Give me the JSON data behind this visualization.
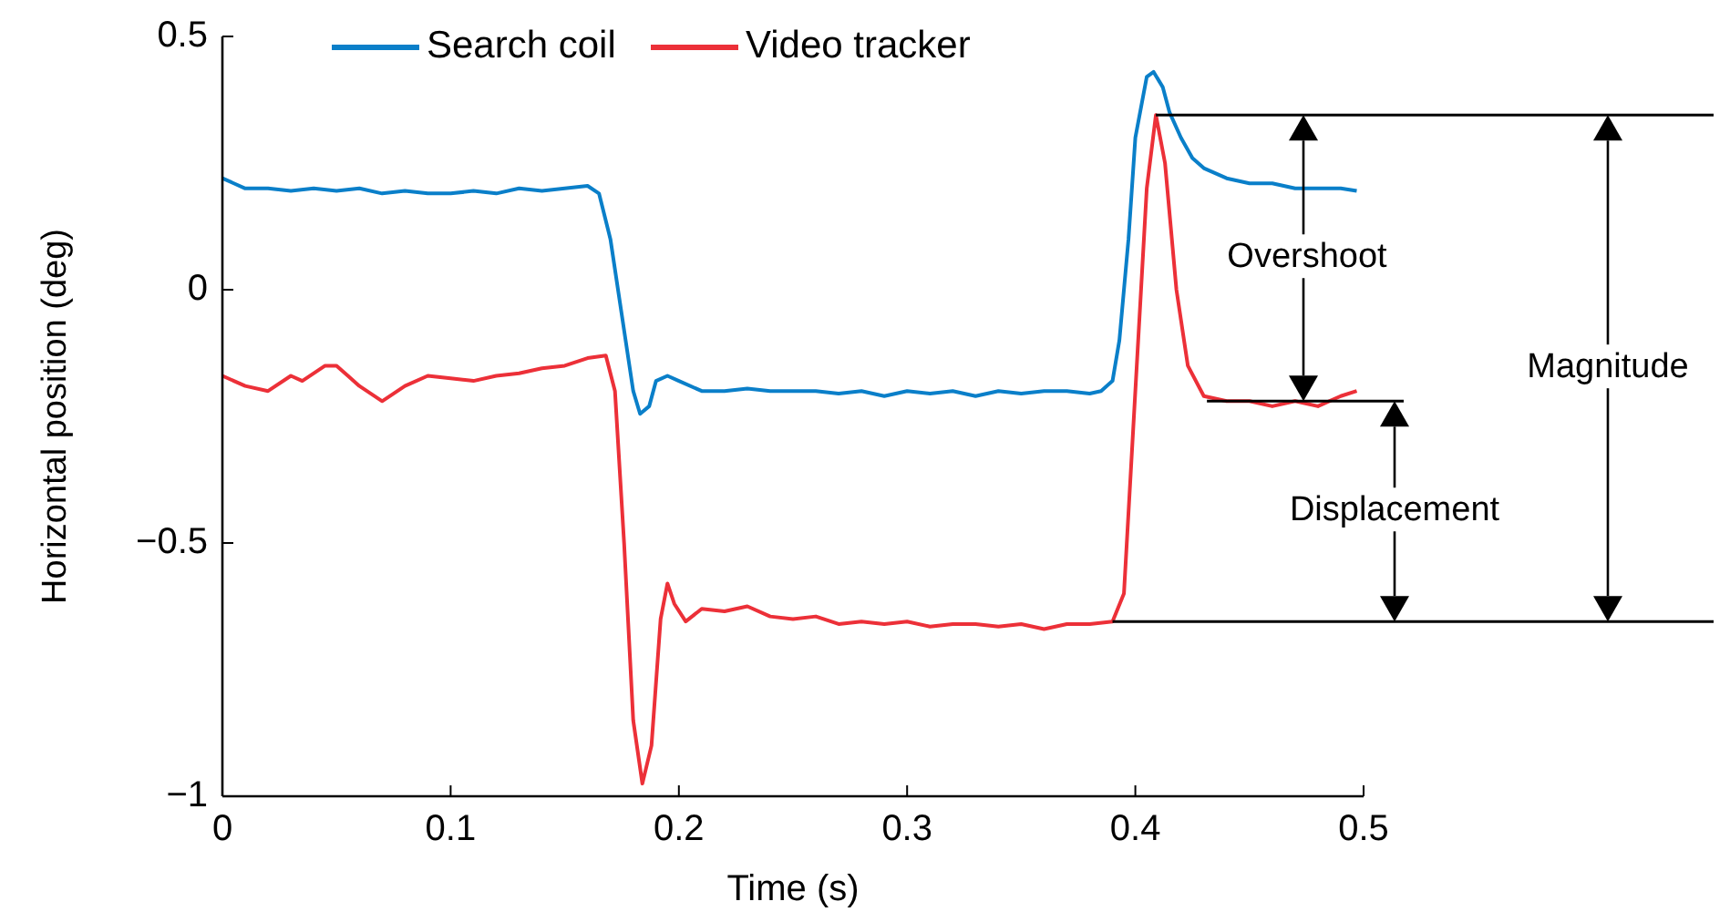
{
  "chart_data": {
    "type": "line",
    "xlabel": "Time (s)",
    "ylabel": "Horizontal position (deg)",
    "xlim": [
      0,
      0.5
    ],
    "xticks": [
      0,
      0.1,
      0.2,
      0.3,
      0.4,
      0.5
    ],
    "ylim": [
      -1,
      0.5
    ],
    "yticks": [
      {
        "value": -1,
        "label": "−1"
      },
      {
        "value": -0.5,
        "label": "−0.5"
      },
      0,
      0.5
    ],
    "legend": "top",
    "grid": false,
    "ref_lines": [
      {
        "axis": "y",
        "value": 0.345,
        "color": "#000000"
      },
      {
        "axis": "y",
        "value": -0.22,
        "color": "#000000"
      },
      {
        "axis": "y",
        "value": -0.655,
        "color": "#000000"
      }
    ],
    "annotations": [
      "Overshoot",
      "Displacement",
      "Magnitude"
    ],
    "series": [
      {
        "name": "Search coil",
        "color": "#0a7fc9",
        "x": [
          0,
          0.005,
          0.01,
          0.02,
          0.03,
          0.04,
          0.05,
          0.06,
          0.07,
          0.08,
          0.09,
          0.1,
          0.11,
          0.12,
          0.13,
          0.14,
          0.15,
          0.16,
          0.165,
          0.17,
          0.175,
          0.18,
          0.183,
          0.187,
          0.19,
          0.195,
          0.2,
          0.21,
          0.22,
          0.23,
          0.24,
          0.25,
          0.26,
          0.27,
          0.28,
          0.29,
          0.3,
          0.31,
          0.32,
          0.33,
          0.34,
          0.35,
          0.36,
          0.37,
          0.38,
          0.385,
          0.39,
          0.393,
          0.397,
          0.4,
          0.405,
          0.408,
          0.412,
          0.415,
          0.42,
          0.425,
          0.43,
          0.44,
          0.45,
          0.46,
          0.47,
          0.48,
          0.49,
          0.497
        ],
        "values": [
          0.22,
          0.21,
          0.2,
          0.2,
          0.195,
          0.2,
          0.195,
          0.2,
          0.19,
          0.195,
          0.19,
          0.19,
          0.195,
          0.19,
          0.2,
          0.195,
          0.2,
          0.205,
          0.19,
          0.1,
          -0.05,
          -0.2,
          -0.245,
          -0.23,
          -0.18,
          -0.17,
          -0.18,
          -0.2,
          -0.2,
          -0.195,
          -0.2,
          -0.2,
          -0.2,
          -0.205,
          -0.2,
          -0.21,
          -0.2,
          -0.205,
          -0.2,
          -0.21,
          -0.2,
          -0.205,
          -0.2,
          -0.2,
          -0.205,
          -0.2,
          -0.18,
          -0.1,
          0.1,
          0.3,
          0.42,
          0.43,
          0.4,
          0.35,
          0.3,
          0.26,
          0.24,
          0.22,
          0.21,
          0.21,
          0.2,
          0.2,
          0.2,
          0.195
        ]
      },
      {
        "name": "Video tracker",
        "color": "#ec3038",
        "x": [
          0,
          0.01,
          0.02,
          0.03,
          0.035,
          0.045,
          0.05,
          0.055,
          0.06,
          0.07,
          0.08,
          0.09,
          0.1,
          0.11,
          0.12,
          0.13,
          0.14,
          0.15,
          0.16,
          0.168,
          0.172,
          0.176,
          0.18,
          0.184,
          0.188,
          0.192,
          0.195,
          0.198,
          0.203,
          0.21,
          0.22,
          0.23,
          0.24,
          0.25,
          0.26,
          0.27,
          0.28,
          0.29,
          0.3,
          0.31,
          0.32,
          0.33,
          0.34,
          0.35,
          0.36,
          0.37,
          0.38,
          0.39,
          0.395,
          0.4,
          0.405,
          0.409,
          0.413,
          0.418,
          0.423,
          0.43,
          0.44,
          0.45,
          0.46,
          0.47,
          0.48,
          0.49,
          0.497
        ],
        "values": [
          -0.17,
          -0.19,
          -0.2,
          -0.17,
          -0.18,
          -0.15,
          -0.15,
          -0.17,
          -0.19,
          -0.22,
          -0.19,
          -0.17,
          -0.175,
          -0.18,
          -0.17,
          -0.165,
          -0.155,
          -0.15,
          -0.135,
          -0.13,
          -0.2,
          -0.5,
          -0.85,
          -0.975,
          -0.9,
          -0.65,
          -0.58,
          -0.62,
          -0.655,
          -0.63,
          -0.635,
          -0.625,
          -0.645,
          -0.65,
          -0.645,
          -0.66,
          -0.655,
          -0.66,
          -0.655,
          -0.665,
          -0.66,
          -0.66,
          -0.665,
          -0.66,
          -0.67,
          -0.66,
          -0.66,
          -0.655,
          -0.6,
          -0.2,
          0.2,
          0.345,
          0.25,
          0.0,
          -0.15,
          -0.21,
          -0.22,
          -0.22,
          -0.23,
          -0.22,
          -0.23,
          -0.21,
          -0.2
        ]
      }
    ]
  }
}
